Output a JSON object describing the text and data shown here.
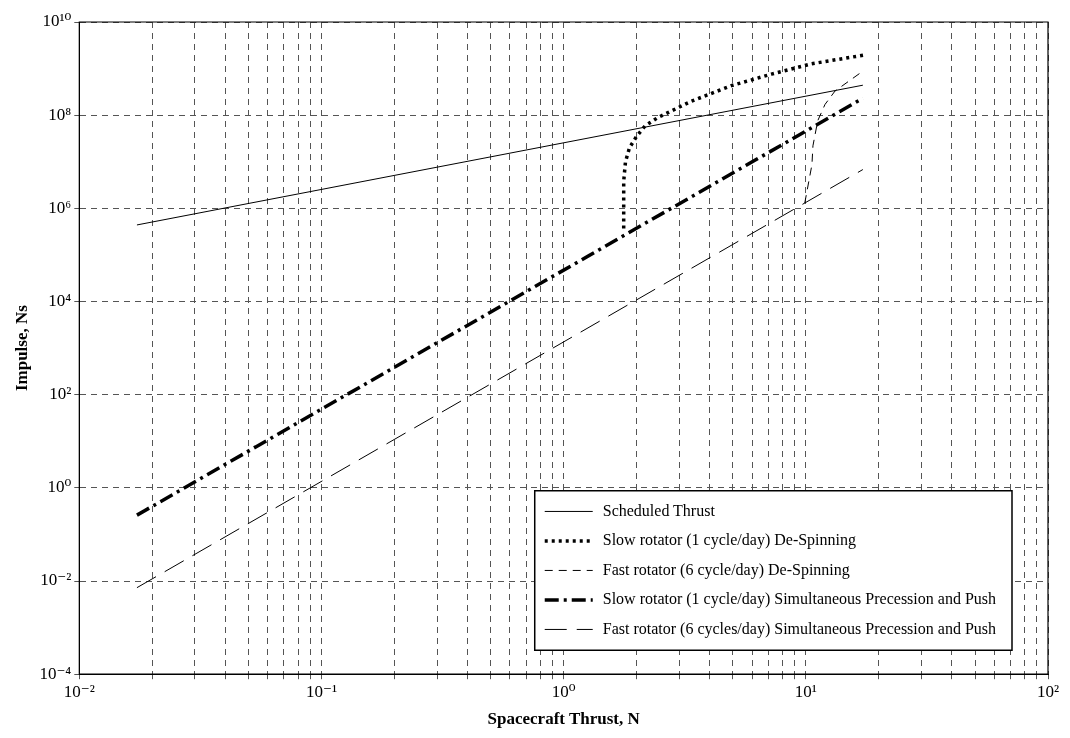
{
  "chart_data": {
    "type": "line",
    "xlabel": "Spacecraft Thrust, N",
    "ylabel": "Impulse, Ns",
    "log": "xy",
    "grid": true,
    "legend": "bottom right",
    "marker": "none",
    "xlim": [
      0.01,
      100
    ],
    "ylim": [
      0.0001,
      10000000000
    ],
    "xticks": [
      {
        "value": 0.01,
        "label": "10⁻²"
      },
      {
        "value": 0.02,
        "label": null
      },
      {
        "value": 0.03,
        "label": null
      },
      {
        "value": 0.04,
        "label": null
      },
      {
        "value": 0.05,
        "label": null
      },
      {
        "value": 0.06,
        "label": null
      },
      {
        "value": 0.07,
        "label": null
      },
      {
        "value": 0.08,
        "label": null
      },
      {
        "value": 0.09,
        "label": null
      },
      {
        "value": 0.1,
        "label": "10⁻¹"
      },
      {
        "value": 0.2,
        "label": null
      },
      {
        "value": 0.3,
        "label": null
      },
      {
        "value": 0.4,
        "label": null
      },
      {
        "value": 0.5,
        "label": null
      },
      {
        "value": 0.6,
        "label": null
      },
      {
        "value": 0.7,
        "label": null
      },
      {
        "value": 0.8,
        "label": null
      },
      {
        "value": 0.9,
        "label": null
      },
      {
        "value": 1,
        "label": "10⁰"
      },
      {
        "value": 2,
        "label": null
      },
      {
        "value": 3,
        "label": null
      },
      {
        "value": 4,
        "label": null
      },
      {
        "value": 5,
        "label": null
      },
      {
        "value": 6,
        "label": null
      },
      {
        "value": 7,
        "label": null
      },
      {
        "value": 8,
        "label": null
      },
      {
        "value": 9,
        "label": null
      },
      {
        "value": 10,
        "label": "10¹"
      },
      {
        "value": 20,
        "label": null
      },
      {
        "value": 30,
        "label": null
      },
      {
        "value": 40,
        "label": null
      },
      {
        "value": 50,
        "label": null
      },
      {
        "value": 60,
        "label": null
      },
      {
        "value": 70,
        "label": null
      },
      {
        "value": 80,
        "label": null
      },
      {
        "value": 90,
        "label": null
      },
      {
        "value": 100,
        "label": "10²"
      }
    ],
    "yticks": [
      {
        "value": 0.0001,
        "label": "10⁻⁴"
      },
      {
        "value": 0.01,
        "label": "10⁻²"
      },
      {
        "value": 1,
        "label": "10⁰"
      },
      {
        "value": 100,
        "label": "10²"
      },
      {
        "value": 10000,
        "label": "10⁴"
      },
      {
        "value": 1000000,
        "label": "10⁶"
      },
      {
        "value": 100000000,
        "label": "10⁸"
      },
      {
        "value": 10000000000,
        "label": "10¹⁰"
      }
    ],
    "series": [
      {
        "name": "Scheduled Thrust",
        "color": "#000000",
        "line_style": "solid",
        "x": [
          0.0173,
          17.2
        ],
        "values": [
          440000,
          440000000
        ]
      },
      {
        "name": "Slow rotator (1 cycle/day) De-Spinning",
        "color": "#000000",
        "line_style": "dotted",
        "x": [
          1.77,
          1.77,
          1.8,
          1.87,
          2.0,
          2.17,
          2.45,
          3.37,
          4.93,
          7.21,
          10.5,
          17.4
        ],
        "values": [
          370000,
          3800000,
          10000000,
          20000000,
          35000000,
          59000000,
          89000000,
          200000000,
          430000000,
          760000000,
          1260000000,
          1950000000
        ]
      },
      {
        "name": "Fast rotator (6 cycle/day) De-Spinning",
        "color": "#000000",
        "line_style": "dashed",
        "x": [
          9.9,
          10.6,
          10.7,
          11.2,
          12.0,
          13.2,
          16.7
        ],
        "values": [
          1300000,
          8700000,
          22000000,
          76000000,
          170000000,
          330000000,
          790000000
        ]
      },
      {
        "name": "Slow rotator (1 cycle/day) Simultaneous Precession and Push",
        "color": "#000000",
        "line_style": "dashdot",
        "x": [
          0.0173,
          17.2
        ],
        "values": [
          0.26,
          230000000
        ]
      },
      {
        "name": "Fast rotator (6 cycles/day) Simultaneous Precession and Push",
        "color": "#000000",
        "line_style": "longdash",
        "x": [
          0.0173,
          17.2
        ],
        "values": [
          0.0072,
          6800000
        ]
      }
    ]
  }
}
